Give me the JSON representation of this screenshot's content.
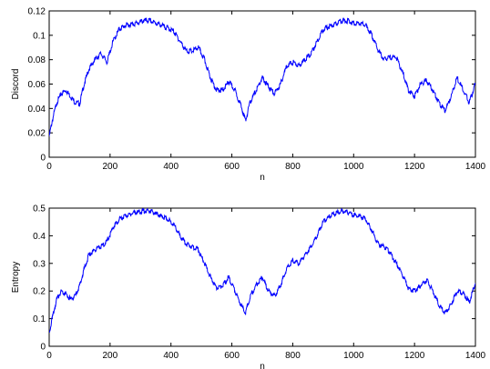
{
  "chart_data": [
    {
      "type": "line",
      "xlabel": "n",
      "ylabel": "Discord",
      "xlim": [
        0,
        1400
      ],
      "ylim": [
        0,
        0.12
      ],
      "xticks": [
        "0",
        "200",
        "400",
        "600",
        "800",
        "1000",
        "1200",
        "1400"
      ],
      "yticks": [
        "0",
        "0.02",
        "0.04",
        "0.06",
        "0.08",
        "0.1",
        "0.12"
      ],
      "color": "#0000ff",
      "series": [
        {
          "x": [
            0,
            10,
            25,
            40,
            55,
            70,
            85,
            100,
            115,
            130,
            150,
            170,
            190,
            210,
            230,
            250,
            270,
            290,
            310,
            330,
            350,
            370,
            390,
            410,
            430,
            450,
            470,
            490,
            510,
            530,
            550,
            570,
            590,
            610,
            630,
            645,
            660,
            680,
            700,
            720,
            740,
            760,
            780,
            800,
            820,
            840,
            860,
            880,
            900,
            920,
            940,
            960,
            980,
            1000,
            1020,
            1040,
            1060,
            1080,
            1100,
            1120,
            1140,
            1160,
            1180,
            1200,
            1220,
            1240,
            1260,
            1280,
            1300,
            1320,
            1340,
            1360,
            1380,
            1400
          ],
          "y": [
            0.017,
            0.03,
            0.045,
            0.052,
            0.055,
            0.05,
            0.045,
            0.044,
            0.06,
            0.072,
            0.08,
            0.085,
            0.078,
            0.095,
            0.105,
            0.108,
            0.109,
            0.11,
            0.112,
            0.112,
            0.11,
            0.108,
            0.106,
            0.103,
            0.095,
            0.087,
            0.087,
            0.09,
            0.08,
            0.065,
            0.055,
            0.055,
            0.062,
            0.055,
            0.042,
            0.03,
            0.045,
            0.055,
            0.065,
            0.058,
            0.052,
            0.06,
            0.075,
            0.078,
            0.075,
            0.08,
            0.085,
            0.095,
            0.105,
            0.107,
            0.109,
            0.112,
            0.112,
            0.11,
            0.11,
            0.108,
            0.1,
            0.088,
            0.08,
            0.082,
            0.082,
            0.07,
            0.055,
            0.05,
            0.06,
            0.063,
            0.055,
            0.045,
            0.038,
            0.05,
            0.065,
            0.055,
            0.045,
            0.06
          ]
        }
      ]
    },
    {
      "type": "line",
      "xlabel": "n",
      "ylabel": "Entropy",
      "xlim": [
        0,
        1400
      ],
      "ylim": [
        0,
        0.5
      ],
      "xticks": [
        "0",
        "200",
        "400",
        "600",
        "800",
        "1000",
        "1200",
        "1400"
      ],
      "yticks": [
        "0",
        "0.1",
        "0.2",
        "0.3",
        "0.4",
        "0.5"
      ],
      "color": "#0000ff",
      "series": [
        {
          "x": [
            0,
            10,
            25,
            40,
            55,
            70,
            85,
            100,
            115,
            130,
            150,
            170,
            190,
            210,
            230,
            250,
            270,
            290,
            310,
            330,
            350,
            370,
            390,
            410,
            430,
            450,
            470,
            490,
            510,
            530,
            550,
            570,
            590,
            610,
            630,
            645,
            660,
            680,
            700,
            720,
            740,
            760,
            780,
            800,
            820,
            840,
            860,
            880,
            900,
            920,
            940,
            960,
            980,
            1000,
            1020,
            1040,
            1060,
            1080,
            1100,
            1120,
            1140,
            1160,
            1180,
            1200,
            1220,
            1240,
            1260,
            1280,
            1300,
            1320,
            1340,
            1360,
            1380,
            1400
          ],
          "y": [
            0.05,
            0.1,
            0.17,
            0.2,
            0.19,
            0.17,
            0.18,
            0.22,
            0.28,
            0.33,
            0.35,
            0.36,
            0.38,
            0.43,
            0.46,
            0.47,
            0.48,
            0.485,
            0.49,
            0.49,
            0.48,
            0.47,
            0.46,
            0.44,
            0.4,
            0.37,
            0.36,
            0.35,
            0.3,
            0.25,
            0.21,
            0.22,
            0.25,
            0.2,
            0.15,
            0.12,
            0.18,
            0.22,
            0.25,
            0.2,
            0.18,
            0.22,
            0.28,
            0.31,
            0.3,
            0.33,
            0.36,
            0.4,
            0.45,
            0.47,
            0.48,
            0.49,
            0.485,
            0.475,
            0.47,
            0.46,
            0.42,
            0.37,
            0.36,
            0.34,
            0.3,
            0.26,
            0.21,
            0.2,
            0.22,
            0.24,
            0.2,
            0.15,
            0.12,
            0.15,
            0.2,
            0.19,
            0.16,
            0.23
          ]
        }
      ]
    }
  ]
}
